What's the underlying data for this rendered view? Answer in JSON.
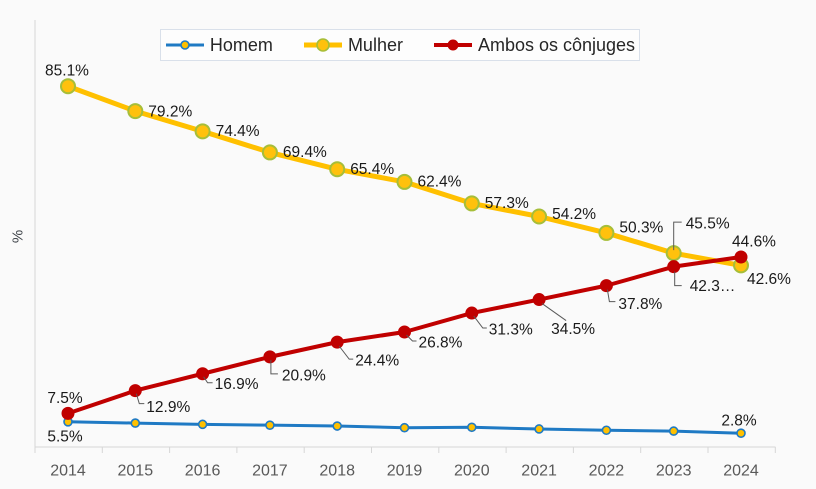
{
  "chart_data": {
    "type": "line",
    "title": "",
    "ylabel": "%",
    "x_labels": [
      "2014",
      "2015",
      "2016",
      "2017",
      "2018",
      "2019",
      "2020",
      "2021",
      "2022",
      "2023",
      "2024"
    ],
    "ylim": [
      0,
      95
    ],
    "grid": false,
    "legend_position": "top-center",
    "series": [
      {
        "name": "Homem",
        "color": "#1f7ac4",
        "marker": {
          "fill": "#ffc000",
          "stroke": "#1f7ac4"
        },
        "values": [
          5.5,
          5.2,
          4.9,
          4.7,
          4.5,
          4.1,
          4.2,
          3.8,
          3.5,
          3.3,
          2.8
        ],
        "point_labels": [
          "5.5%",
          "",
          "",
          "",
          "",
          "",
          "",
          "",
          "",
          "",
          "2.8%"
        ]
      },
      {
        "name": "Mulher",
        "color": "#ffc000",
        "marker": {
          "fill": "#ffc10d",
          "stroke": "#a6be39"
        },
        "values": [
          85.1,
          79.2,
          74.4,
          69.4,
          65.4,
          62.4,
          57.3,
          54.2,
          50.3,
          45.5,
          42.6
        ],
        "point_labels": [
          "85.1%",
          "79.2%",
          "74.4%",
          "69.4%",
          "65.4%",
          "62.4%",
          "57.3%",
          "54.2%",
          "50.3%",
          "45.5%",
          "42.6%"
        ]
      },
      {
        "name": "Ambos os cônjuges",
        "color": "#c00000",
        "marker": {
          "fill": "#c00000",
          "stroke": "#c00000"
        },
        "values": [
          7.5,
          12.9,
          16.9,
          20.9,
          24.4,
          26.8,
          31.3,
          34.5,
          37.8,
          42.3,
          44.6
        ],
        "point_labels": [
          "7.5%",
          "12.9%",
          "16.9%",
          "20.9%",
          "24.4%",
          "26.8%",
          "31.3%",
          "34.5%",
          "37.8%",
          "42.3…",
          "44.6%"
        ]
      }
    ],
    "colors": {
      "background": "#fafafa",
      "axis_line": "#d6d6d6",
      "axis_text": "#595959",
      "label_text": "#1a1a1a",
      "leader_line": "#595959",
      "legend_border": "#d9e0ea"
    }
  }
}
